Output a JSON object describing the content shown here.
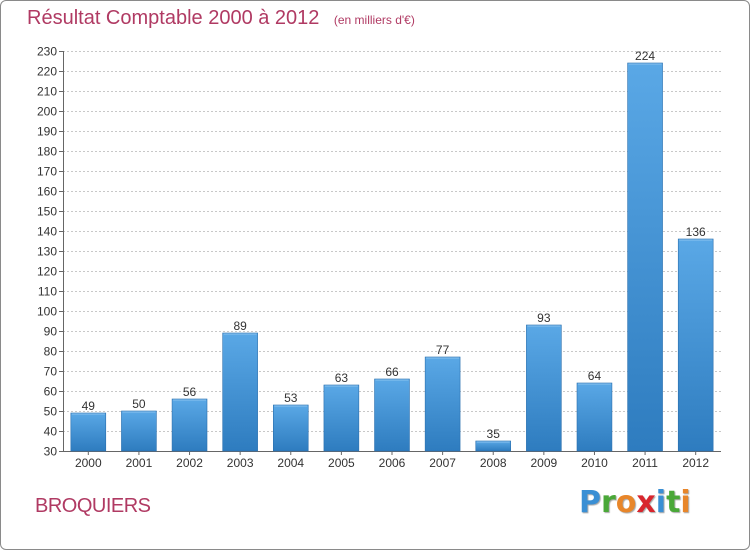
{
  "header": {
    "title": "Résultat Comptable 2000 à 2012",
    "subtitle": "(en milliers d'€)"
  },
  "footer": {
    "commune": "BROQUIERS",
    "logo_text": "Proxiti",
    "logo_letters": [
      {
        "char": "P",
        "color": "#3a8fd4"
      },
      {
        "char": "r",
        "color": "#4aa838"
      },
      {
        "char": "o",
        "color": "#e8862a"
      },
      {
        "char": "x",
        "color": "#d8262e"
      },
      {
        "char": "i",
        "color": "#3a8fd4"
      },
      {
        "char": "t",
        "color": "#4aa838"
      },
      {
        "char": "i",
        "color": "#e8862a"
      }
    ]
  },
  "colors": {
    "bar_top": "#5aa8e6",
    "bar_bottom": "#2e7cbf",
    "grid": "#c8c8c8",
    "accent": "#b03a63"
  },
  "chart_data": {
    "type": "bar",
    "title": "Résultat Comptable 2000 à 2012",
    "subtitle": "(en milliers d'€)",
    "categories": [
      "2000",
      "2001",
      "2002",
      "2003",
      "2004",
      "2005",
      "2006",
      "2007",
      "2008",
      "2009",
      "2010",
      "2011",
      "2012"
    ],
    "values": [
      49,
      50,
      56,
      89,
      53,
      63,
      66,
      77,
      35,
      93,
      64,
      224,
      136
    ],
    "data_labels": [
      "49",
      "50",
      "56",
      "89",
      "53",
      "63",
      "66",
      "77",
      "35",
      "93",
      "64",
      "224",
      "136"
    ],
    "ylim": [
      30,
      230
    ],
    "yticks": [
      30,
      40,
      50,
      60,
      70,
      80,
      90,
      100,
      110,
      120,
      130,
      140,
      150,
      160,
      170,
      180,
      190,
      200,
      210,
      220,
      230
    ],
    "xlabel": "",
    "ylabel": "",
    "grid": true,
    "legend": "none"
  }
}
